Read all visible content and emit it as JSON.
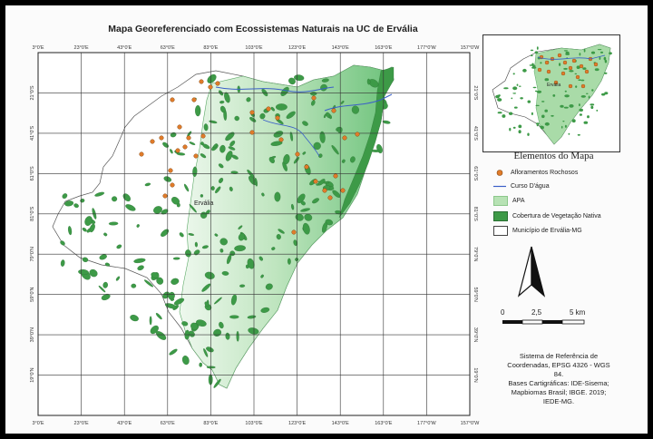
{
  "title": "Mapa Georeferenciado com Ecossistemas Naturais na UC de Ervália",
  "map": {
    "top_ticks": [
      "3°0'E",
      "23°0'E",
      "43°0'E",
      "63°0'E",
      "83°0'E",
      "103°0'E",
      "123°0'E",
      "143°0'E",
      "163°0'E",
      "177°0'W",
      "157°0'W"
    ],
    "bottom_ticks": [
      "3°0'E",
      "23°0'E",
      "43°0'E",
      "63°0'E",
      "83°0'E",
      "103°0'E",
      "123°0'E",
      "143°0'E",
      "163°0'E",
      "177°0'W",
      "157°0'W"
    ],
    "side_ticks": [
      "21°0'S",
      "41°0'S",
      "61°0'S",
      "81°0'S",
      "79°0'N",
      "59°0'N",
      "39°0'N",
      "19°0'N"
    ],
    "place_label": "Ervália",
    "inset_place_label": "Ervália"
  },
  "legend": {
    "title": "Elementos do Mapa",
    "items": [
      {
        "label": "Afloramentos Rochosos",
        "icon": "orange-dot-icon",
        "color": "#e07b2a"
      },
      {
        "label": "Curso D'água",
        "icon": "blue-line-icon",
        "color": "#3a5fc8"
      },
      {
        "label": "APA",
        "icon": "light-green-fill-icon",
        "color": "#b7e2b4"
      },
      {
        "label": "Cobertura de Vegetação Nativa",
        "icon": "dark-green-fill-icon",
        "color": "#3d9a47"
      },
      {
        "label": "Município de Ervália-MG",
        "icon": "white-fill-icon",
        "color": "#ffffff"
      }
    ]
  },
  "scale": {
    "labels": [
      "0",
      "2,5",
      "5 km"
    ]
  },
  "north_arrow": {
    "icon": "north-arrow-icon"
  },
  "credits": {
    "lines": [
      "Sistema de Referência de",
      "Coordenadas, EPSG 4326 - WGS",
      "84.",
      "Bases Cartigráficas: IDE-Sisema;",
      "Mapbiomas Brasil; IBGE. 2019;",
      "IEDE-MG."
    ]
  }
}
